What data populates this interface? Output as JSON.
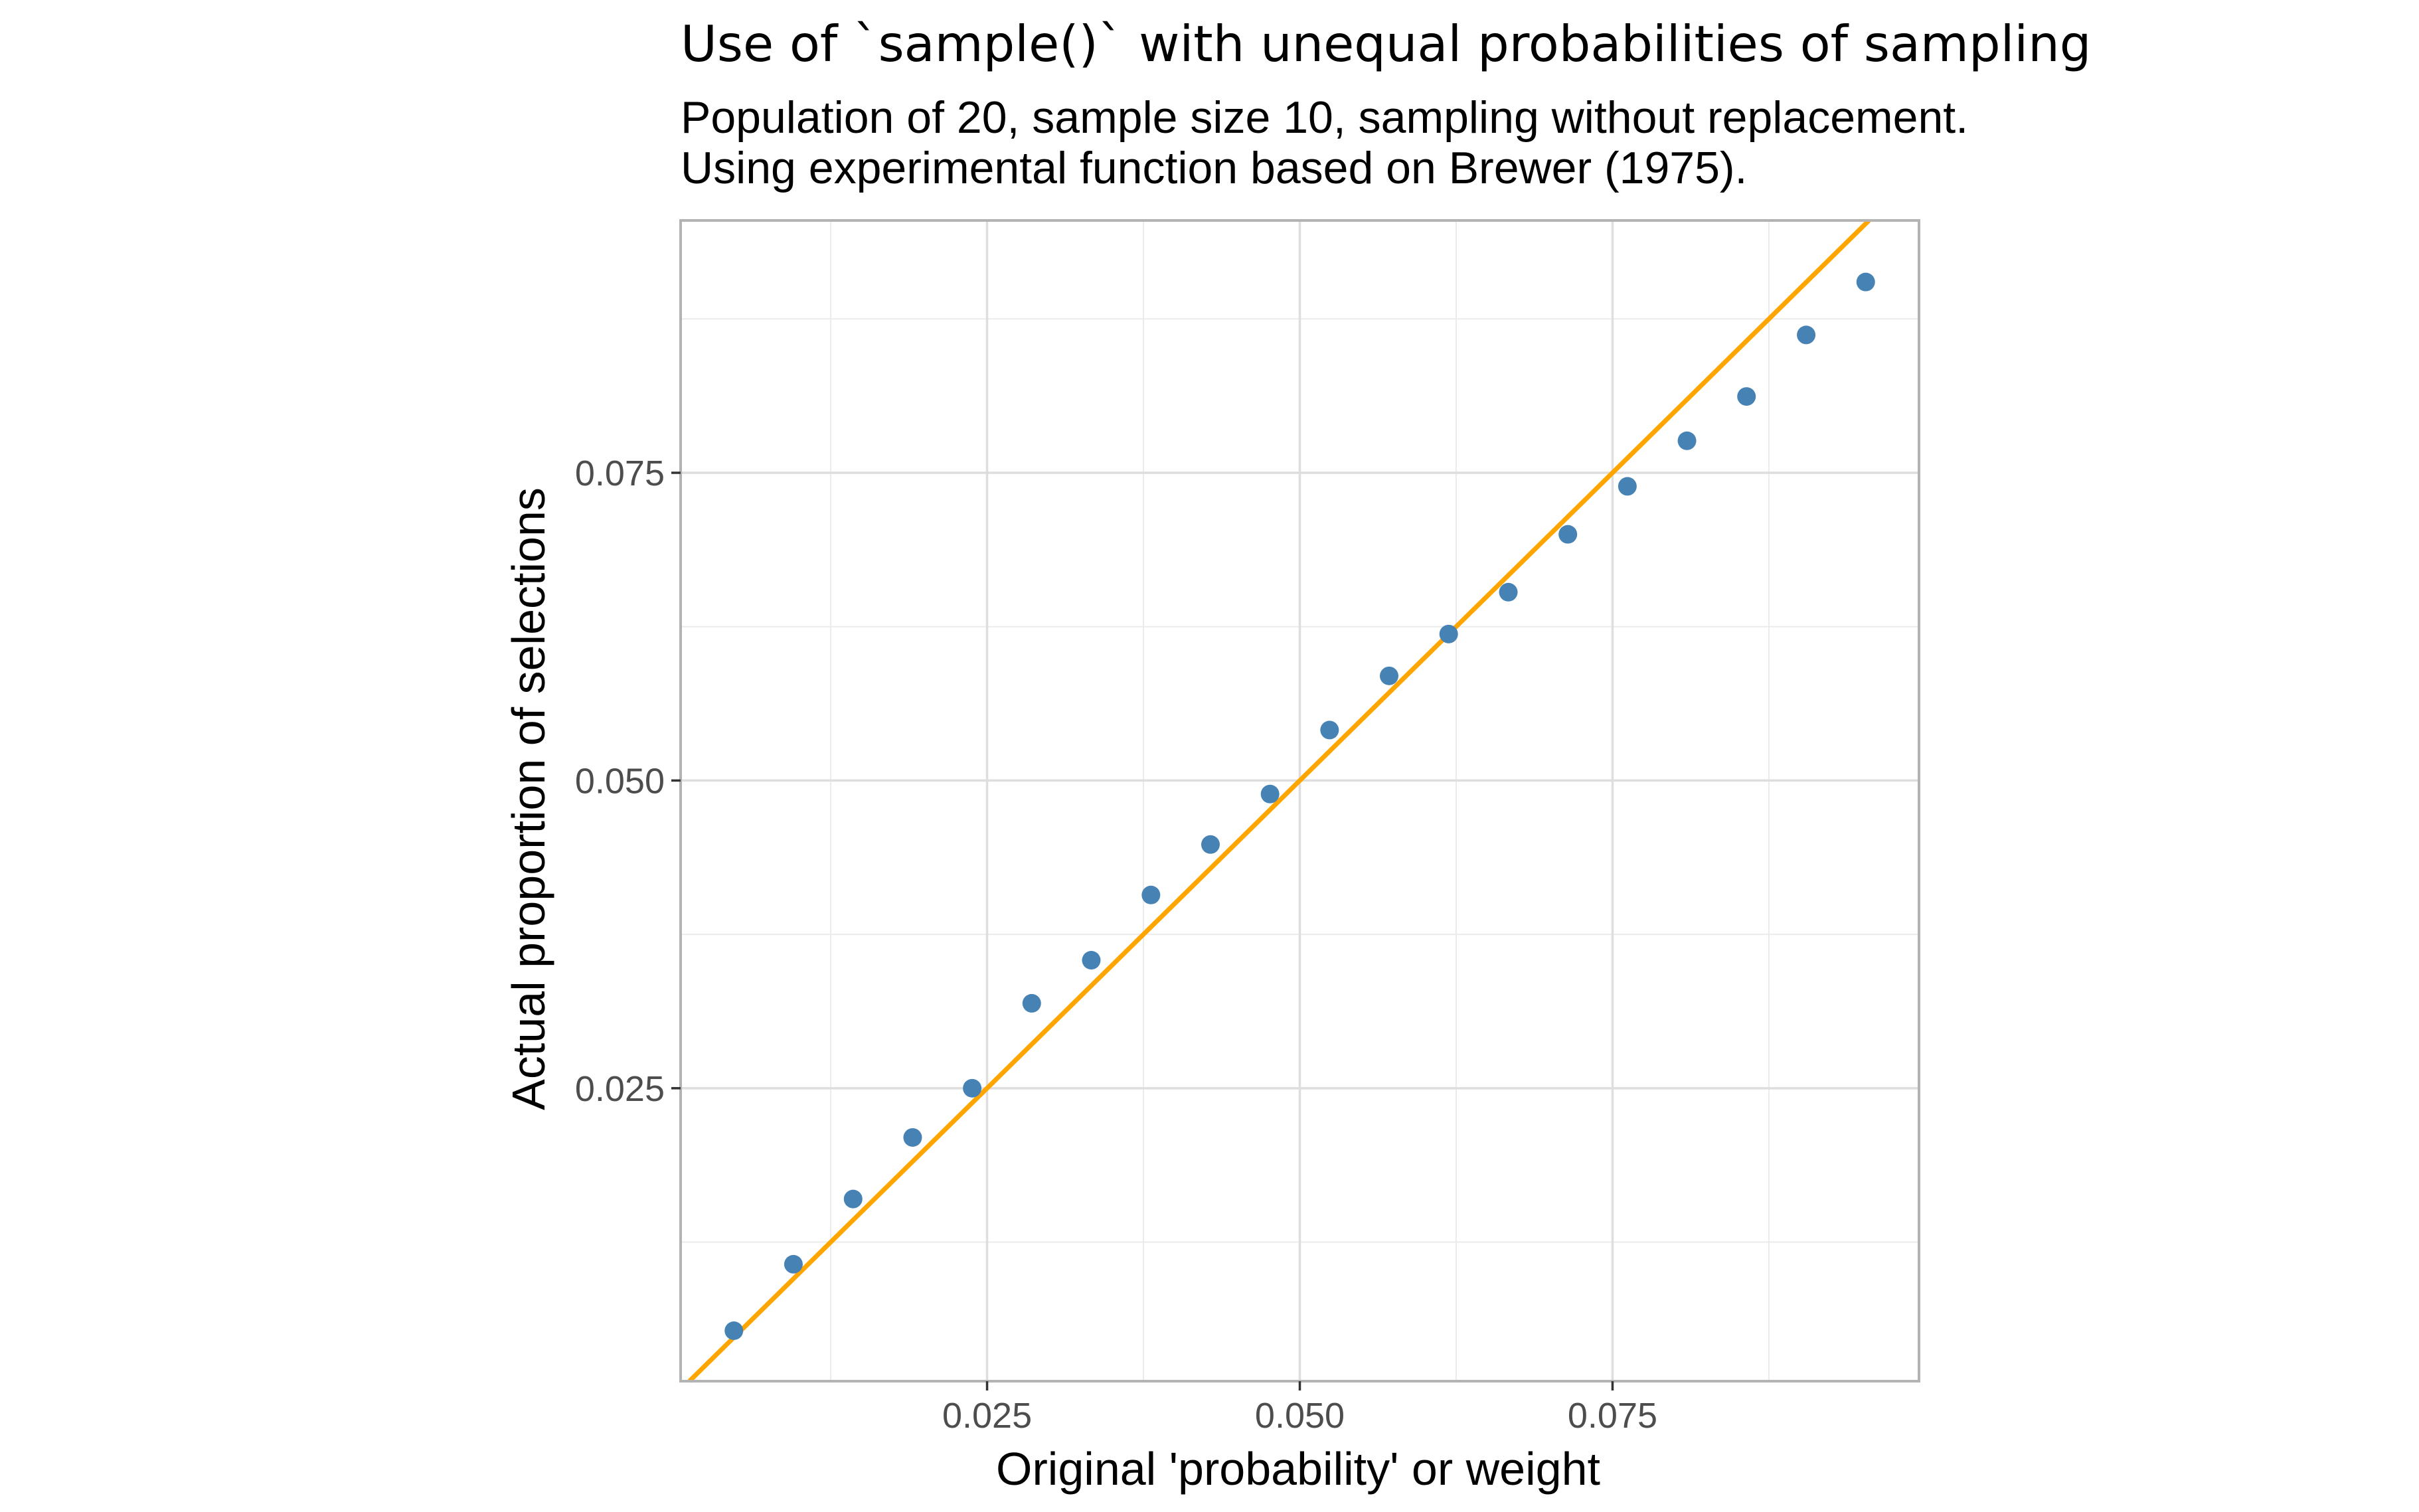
{
  "chart_data": {
    "type": "scatter",
    "title": "Use of `sample()` with unequal probabilities of sampling",
    "subtitle_lines": [
      "Population of 20, sample size 10, sampling without replacement.",
      "Using experimental function based on Brewer (1975)."
    ],
    "xlabel": "Original 'probability' or weight",
    "ylabel": "Actual proportion of selections",
    "xlim": [
      0.0005,
      0.0995
    ],
    "ylim": [
      0.0012,
      0.0955
    ],
    "x_ticks": [
      0.025,
      0.05,
      0.075
    ],
    "x_tick_labels": [
      "0.025",
      "0.050",
      "0.075"
    ],
    "y_ticks": [
      0.025,
      0.05,
      0.075
    ],
    "y_tick_labels": [
      "0.025",
      "0.050",
      "0.075"
    ],
    "grid": true,
    "reference_line": {
      "slope": 1,
      "intercept": 0,
      "color": "#FFA500"
    },
    "point_color": "#4682B4",
    "points": [
      {
        "x": 0.00476,
        "y": 0.0053
      },
      {
        "x": 0.00952,
        "y": 0.0107
      },
      {
        "x": 0.01429,
        "y": 0.016
      },
      {
        "x": 0.01905,
        "y": 0.021
      },
      {
        "x": 0.02381,
        "y": 0.025
      },
      {
        "x": 0.02857,
        "y": 0.0319
      },
      {
        "x": 0.03333,
        "y": 0.0354
      },
      {
        "x": 0.0381,
        "y": 0.0407
      },
      {
        "x": 0.04286,
        "y": 0.0448
      },
      {
        "x": 0.04762,
        "y": 0.0489
      },
      {
        "x": 0.05238,
        "y": 0.0541
      },
      {
        "x": 0.05714,
        "y": 0.0585
      },
      {
        "x": 0.0619,
        "y": 0.0619
      },
      {
        "x": 0.06667,
        "y": 0.0653
      },
      {
        "x": 0.07143,
        "y": 0.07
      },
      {
        "x": 0.07619,
        "y": 0.0739
      },
      {
        "x": 0.08095,
        "y": 0.0776
      },
      {
        "x": 0.08571,
        "y": 0.0812
      },
      {
        "x": 0.09048,
        "y": 0.0862
      },
      {
        "x": 0.09524,
        "y": 0.0905
      }
    ]
  }
}
